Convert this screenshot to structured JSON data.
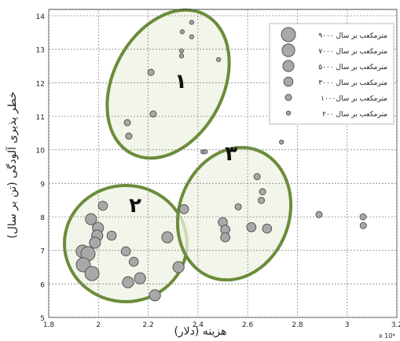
{
  "chart_data": {
    "type": "scatter",
    "x_label": "هزینه (دلار)",
    "y_label": "خطر پذیری آلودگی (تن بر سال)",
    "x_multiplier": "x 10⁴",
    "xlim": [
      1.8,
      3.2
    ],
    "ylim": [
      5,
      14
    ],
    "xticks": [
      1.8,
      2,
      2.2,
      2.4,
      2.6,
      2.8,
      3,
      3.2
    ],
    "yticks": [
      5,
      6,
      7,
      8,
      9,
      10,
      11,
      12,
      13,
      14
    ],
    "grid": true,
    "color": "#a8a8a8",
    "annotations": [
      "۱",
      "۲",
      "۳"
    ],
    "legend_position": "upper right",
    "legend": [
      {
        "label": "۹۰۰۰ مترمکعب بر سال",
        "size": 9000
      },
      {
        "label": "۷۰۰۰ مترمکعب بر سال",
        "size": 7000
      },
      {
        "label": "۵۰۰۰ مترمکعب بر سال",
        "size": 5000
      },
      {
        "label": "۳۰۰۰ مترمکعب بر سال",
        "size": 3000
      },
      {
        "label": "۱۰۰۰مترمکعب بر سال",
        "size": 1000
      },
      {
        "label": "۲۰۰ مترمکعب بر سال",
        "size": 200
      }
    ],
    "x": [
      2.337,
      2.375,
      2.375,
      2.334,
      2.334,
      2.483,
      2.211,
      2.22,
      2.116,
      2.122,
      2.42,
      2.43,
      2.736,
      2.638,
      2.66,
      2.655,
      2.562,
      2.5,
      2.51,
      2.51,
      2.615,
      2.678,
      2.344,
      2.887,
      3.064,
      3.065,
      2.018,
      1.97,
      1.998,
      1.995,
      2.053,
      1.986,
      2.277,
      1.936,
      1.958,
      2.11,
      2.142,
      1.939,
      1.974,
      2.119,
      2.167,
      2.227,
      2.322
    ],
    "values": [
      13.52,
      13.8,
      13.37,
      12.95,
      12.8,
      12.69,
      12.31,
      11.07,
      10.81,
      10.41,
      9.94,
      9.94,
      10.23,
      9.2,
      8.75,
      8.49,
      8.3,
      7.84,
      7.62,
      7.39,
      7.69,
      7.65,
      8.23,
      8.07,
      8.0,
      7.74,
      8.33,
      7.93,
      7.67,
      7.44,
      7.44,
      7.23,
      7.39,
      6.97,
      6.9,
      6.97,
      6.66,
      6.57,
      6.31,
      6.05,
      6.17,
      5.66,
      6.5
    ],
    "sizes": [
      200,
      200,
      200,
      200,
      200,
      200,
      1000,
      1000,
      1000,
      1000,
      200,
      200,
      200,
      1000,
      1000,
      1000,
      1000,
      3000,
      3000,
      3000,
      3000,
      3000,
      3000,
      1000,
      1000,
      1000,
      3000,
      5000,
      5000,
      5000,
      3000,
      5000,
      5000,
      7000,
      9000,
      3000,
      3000,
      9000,
      9000,
      5000,
      5000,
      5000,
      5000
    ]
  }
}
